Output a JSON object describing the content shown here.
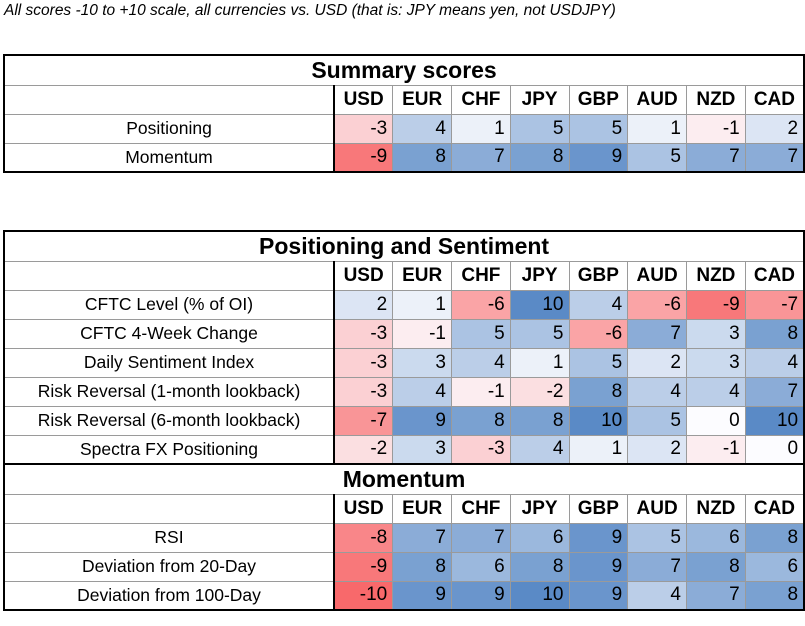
{
  "caption": "All scores -10 to +10 scale, all currencies vs. USD (that is: JPY means yen, not USDJPY)",
  "currencies": [
    "USD",
    "EUR",
    "CHF",
    "JPY",
    "GBP",
    "AUD",
    "NZD",
    "CAD"
  ],
  "colors": {
    "negative_max": "#f8696b",
    "neutral": "#fcfcff",
    "positive_max": "#5a8ac6"
  },
  "summary": {
    "title": "Summary scores",
    "rows": [
      {
        "label": "Positioning",
        "values": [
          -3,
          4,
          1,
          5,
          5,
          1,
          -1,
          2
        ]
      },
      {
        "label": "Momentum",
        "values": [
          -9,
          8,
          7,
          8,
          9,
          5,
          7,
          7
        ]
      }
    ]
  },
  "positioning": {
    "title": "Positioning and Sentiment",
    "rows": [
      {
        "label": "CFTC Level (% of OI)",
        "values": [
          2,
          1,
          -6,
          10,
          4,
          -6,
          -9,
          -7
        ]
      },
      {
        "label": "CFTC 4-Week Change",
        "values": [
          -3,
          -1,
          5,
          5,
          -6,
          7,
          3,
          8
        ]
      },
      {
        "label": "Daily Sentiment Index",
        "values": [
          -3,
          3,
          4,
          1,
          5,
          2,
          3,
          4
        ]
      },
      {
        "label": "Risk Reversal (1-month lookback)",
        "values": [
          -3,
          4,
          -1,
          -2,
          8,
          4,
          4,
          7
        ]
      },
      {
        "label": "Risk Reversal (6-month lookback)",
        "values": [
          -7,
          9,
          8,
          8,
          10,
          5,
          0,
          10
        ]
      },
      {
        "label": "Spectra FX Positioning",
        "values": [
          -2,
          3,
          -3,
          4,
          1,
          2,
          -1,
          0
        ]
      }
    ]
  },
  "momentum": {
    "title": "Momentum",
    "rows": [
      {
        "label": "RSI",
        "values": [
          -8,
          7,
          7,
          6,
          9,
          5,
          6,
          8
        ]
      },
      {
        "label": "Deviation from 20-Day",
        "values": [
          -9,
          8,
          6,
          8,
          9,
          7,
          8,
          6
        ]
      },
      {
        "label": "Deviation from 100-Day",
        "values": [
          -10,
          9,
          9,
          10,
          9,
          4,
          7,
          8
        ]
      }
    ]
  }
}
